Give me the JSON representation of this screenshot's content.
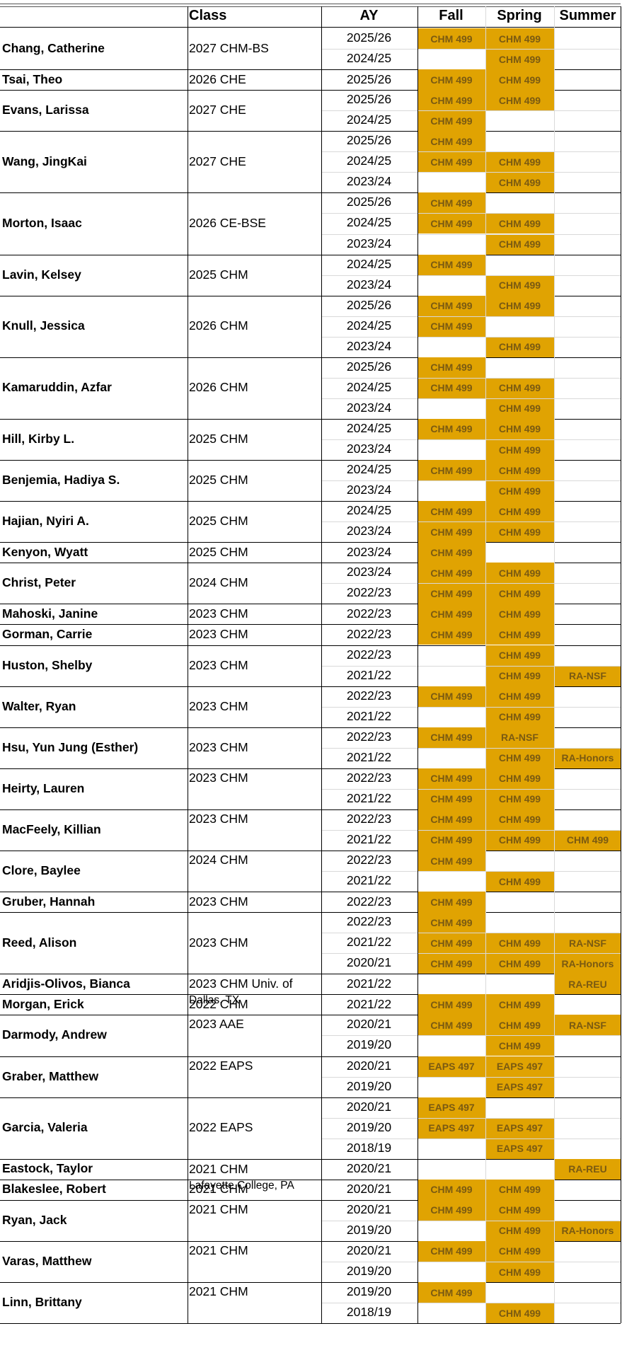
{
  "colors": {
    "fill": "#e0a302",
    "cell_text": "#7a5a12",
    "grid": "#d9d9d9",
    "border": "#000000"
  },
  "headers": {
    "class": "Class",
    "ay": "AY",
    "fall": "Fall",
    "spring": "Spring",
    "summer": "Summer"
  },
  "students": [
    {
      "name": "Chang, Catherine",
      "class": [
        "2027 CHM-BS"
      ],
      "rows": [
        {
          "ay": "2025/26",
          "fall": "CHM 499",
          "spring": "CHM 499",
          "summer": ""
        },
        {
          "ay": "2024/25",
          "fall": "",
          "spring": "CHM 499",
          "summer": ""
        }
      ]
    },
    {
      "name": "Tsai, Theo",
      "class": [
        "2026 CHE"
      ],
      "rows": [
        {
          "ay": "2025/26",
          "fall": "CHM 499",
          "spring": "CHM 499",
          "summer": ""
        }
      ]
    },
    {
      "name": "Evans, Larissa",
      "class": [
        "2027 CHE"
      ],
      "rows": [
        {
          "ay": "2025/26",
          "fall": "CHM 499",
          "spring": "CHM 499",
          "summer": ""
        },
        {
          "ay": "2024/25",
          "fall": "CHM 499",
          "spring": "",
          "summer": ""
        }
      ]
    },
    {
      "name": "Wang, JingKai",
      "class": [
        "2027 CHE"
      ],
      "rows": [
        {
          "ay": "2025/26",
          "fall": "CHM 499",
          "spring": "",
          "summer": ""
        },
        {
          "ay": "2024/25",
          "fall": "CHM 499",
          "spring": "CHM 499",
          "summer": ""
        },
        {
          "ay": "2023/24",
          "fall": "",
          "spring": "CHM 499",
          "summer": ""
        }
      ]
    },
    {
      "name": "Morton, Isaac",
      "class": [
        "2026 CE-BSE"
      ],
      "rows": [
        {
          "ay": "2025/26",
          "fall": "CHM 499",
          "spring": "",
          "summer": ""
        },
        {
          "ay": "2024/25",
          "fall": "CHM 499",
          "spring": "CHM 499",
          "summer": ""
        },
        {
          "ay": "2023/24",
          "fall": "",
          "spring": "CHM 499",
          "summer": ""
        }
      ]
    },
    {
      "name": "Lavin, Kelsey",
      "class": [
        "2025 CHM"
      ],
      "rows": [
        {
          "ay": "2024/25",
          "fall": "CHM 499",
          "spring": "",
          "summer": ""
        },
        {
          "ay": "2023/24",
          "fall": "",
          "spring": "CHM 499",
          "summer": ""
        }
      ]
    },
    {
      "name": "Knull, Jessica",
      "class": [
        "2026 CHM"
      ],
      "rows": [
        {
          "ay": "2025/26",
          "fall": "CHM 499",
          "spring": "CHM 499",
          "summer": ""
        },
        {
          "ay": "2024/25",
          "fall": "CHM 499",
          "spring": "",
          "summer": ""
        },
        {
          "ay": "2023/24",
          "fall": "",
          "spring": "CHM 499",
          "summer": ""
        }
      ]
    },
    {
      "name": "Kamaruddin, Azfar",
      "class": [
        "2026 CHM"
      ],
      "rows": [
        {
          "ay": "2025/26",
          "fall": "CHM 499",
          "spring": "",
          "summer": ""
        },
        {
          "ay": "2024/25",
          "fall": "CHM 499",
          "spring": "CHM 499",
          "summer": ""
        },
        {
          "ay": "2023/24",
          "fall": "",
          "spring": "CHM 499",
          "summer": ""
        }
      ]
    },
    {
      "name": "Hill, Kirby L.",
      "class": [
        "2025 CHM"
      ],
      "rows": [
        {
          "ay": "2024/25",
          "fall": "CHM 499",
          "spring": "CHM 499",
          "summer": ""
        },
        {
          "ay": "2023/24",
          "fall": "",
          "spring": "CHM 499",
          "summer": ""
        }
      ]
    },
    {
      "name": "Benjemia, Hadiya S.",
      "class": [
        "2025 CHM"
      ],
      "rows": [
        {
          "ay": "2024/25",
          "fall": "CHM 499",
          "spring": "CHM 499",
          "summer": ""
        },
        {
          "ay": "2023/24",
          "fall": "",
          "spring": "CHM 499",
          "summer": ""
        }
      ]
    },
    {
      "name": "Hajian, Nyiri A.",
      "class": [
        "2025 CHM"
      ],
      "rows": [
        {
          "ay": "2024/25",
          "fall": "CHM 499",
          "spring": "CHM 499",
          "summer": ""
        },
        {
          "ay": "2023/24",
          "fall": "CHM 499",
          "spring": "CHM 499",
          "summer": ""
        }
      ]
    },
    {
      "name": "Kenyon, Wyatt",
      "class": [
        "2025 CHM"
      ],
      "rows": [
        {
          "ay": "2023/24",
          "fall": "CHM 499",
          "spring": "",
          "summer": ""
        }
      ]
    },
    {
      "name": "Christ, Peter",
      "class": [
        "2024 CHM"
      ],
      "rows": [
        {
          "ay": "2023/24",
          "fall": "CHM 499",
          "spring": "CHM 499",
          "summer": ""
        },
        {
          "ay": "2022/23",
          "fall": "CHM 499",
          "spring": "CHM 499",
          "summer": ""
        }
      ]
    },
    {
      "name": "Mahoski, Janine",
      "class": [
        "2023 CHM"
      ],
      "rows": [
        {
          "ay": "2022/23",
          "fall": "CHM 499",
          "spring": "CHM 499",
          "summer": ""
        }
      ]
    },
    {
      "name": "Gorman, Carrie",
      "class": [
        "2023 CHM"
      ],
      "rows": [
        {
          "ay": "2022/23",
          "fall": "CHM 499",
          "spring": "CHM 499",
          "summer": ""
        }
      ]
    },
    {
      "name": "Huston, Shelby",
      "class": [
        "2023 CHM"
      ],
      "rows": [
        {
          "ay": "2022/23",
          "fall": "",
          "spring": "CHM 499",
          "summer": ""
        },
        {
          "ay": "2021/22",
          "fall": "",
          "spring": "CHM 499",
          "summer": "RA-NSF"
        }
      ]
    },
    {
      "name": "Walter, Ryan",
      "class": [
        "2023 CHM"
      ],
      "rows": [
        {
          "ay": "2022/23",
          "fall": "CHM 499",
          "spring": "CHM 499",
          "summer": ""
        },
        {
          "ay": "2021/22",
          "fall": "",
          "spring": "CHM 499",
          "summer": ""
        }
      ]
    },
    {
      "name": "Hsu, Yun Jung (Esther)",
      "class": [
        "2023 CHM"
      ],
      "rows": [
        {
          "ay": "2022/23",
          "fall": "CHM 499",
          "spring": "RA-NSF",
          "summer": ""
        },
        {
          "ay": "2021/22",
          "fall": "",
          "spring": "CHM 499",
          "summer": "RA-Honors"
        }
      ]
    },
    {
      "name": "Heirty, Lauren",
      "class": [
        "2023 CHM"
      ],
      "rows": [
        {
          "ay": "2022/23",
          "fall": "CHM 499",
          "spring": "CHM 499",
          "summer": ""
        },
        {
          "ay": "2021/22",
          "fall": "CHM 499",
          "spring": "CHM 499",
          "summer": ""
        }
      ]
    },
    {
      "name": "MacFeely, Killian",
      "class": [
        "2023 CHM"
      ],
      "rows": [
        {
          "ay": "2022/23",
          "fall": "CHM 499",
          "spring": "CHM 499",
          "summer": ""
        },
        {
          "ay": "2021/22",
          "fall": "CHM 499",
          "spring": "CHM 499",
          "summer": "CHM 499"
        }
      ]
    },
    {
      "name": "Clore, Baylee",
      "class": [
        "2024 CHM"
      ],
      "rows": [
        {
          "ay": "2022/23",
          "fall": "CHM 499",
          "spring": "",
          "summer": ""
        },
        {
          "ay": "2021/22",
          "fall": "",
          "spring": "CHM 499",
          "summer": ""
        }
      ]
    },
    {
      "name": "Gruber, Hannah",
      "class": [
        "2023 CHM"
      ],
      "rows": [
        {
          "ay": "2022/23",
          "fall": "CHM 499",
          "spring": "",
          "summer": ""
        }
      ]
    },
    {
      "name": "Reed, Alison",
      "class": [
        "2023 CHM"
      ],
      "rows": [
        {
          "ay": "2022/23",
          "fall": "CHM 499",
          "spring": "",
          "summer": ""
        },
        {
          "ay": "2021/22",
          "fall": "CHM 499",
          "spring": "CHM 499",
          "summer": "RA-NSF"
        },
        {
          "ay": "2020/21",
          "fall": "CHM 499",
          "spring": "CHM 499",
          "summer": "RA-Honors"
        }
      ]
    },
    {
      "name": "Aridjis-Olivos, Bianca",
      "class": [
        "2023 CHM Univ. of",
        "Dallas, TX"
      ],
      "rows": [
        {
          "ay": "2021/22",
          "fall": "",
          "spring": "",
          "summer": "RA-REU"
        }
      ]
    },
    {
      "name": "Morgan, Erick",
      "class": [
        "2022 CHM"
      ],
      "rows": [
        {
          "ay": "2021/22",
          "fall": "CHM 499",
          "spring": "CHM 499",
          "summer": ""
        }
      ]
    },
    {
      "name": "Darmody, Andrew",
      "class": [
        "2023 AAE"
      ],
      "rows": [
        {
          "ay": "2020/21",
          "fall": "CHM 499",
          "spring": "CHM 499",
          "summer": "RA-NSF"
        },
        {
          "ay": "2019/20",
          "fall": "",
          "spring": "CHM 499",
          "summer": ""
        }
      ]
    },
    {
      "name": "Graber, Matthew",
      "class": [
        "2022 EAPS"
      ],
      "rows": [
        {
          "ay": "2020/21",
          "fall": "EAPS 497",
          "spring": "EAPS 497",
          "summer": ""
        },
        {
          "ay": "2019/20",
          "fall": "",
          "spring": "EAPS 497",
          "summer": ""
        }
      ]
    },
    {
      "name": "Garcia, Valeria",
      "class": [
        "2022 EAPS"
      ],
      "rows": [
        {
          "ay": "2020/21",
          "fall": "EAPS 497",
          "spring": "",
          "summer": ""
        },
        {
          "ay": "2019/20",
          "fall": "EAPS 497",
          "spring": "EAPS 497",
          "summer": ""
        },
        {
          "ay": "2018/19",
          "fall": "",
          "spring": "EAPS 497",
          "summer": ""
        }
      ]
    },
    {
      "name": "Eastock, Taylor",
      "class": [
        "2021 CHM",
        "Lafayette College, PA"
      ],
      "rows": [
        {
          "ay": "2020/21",
          "fall": "",
          "spring": "",
          "summer": "RA-REU"
        }
      ]
    },
    {
      "name": "Blakeslee, Robert",
      "class": [
        "2021 CHM"
      ],
      "rows": [
        {
          "ay": "2020/21",
          "fall": "CHM 499",
          "spring": "CHM 499",
          "summer": ""
        }
      ]
    },
    {
      "name": "Ryan, Jack",
      "class": [
        "2021 CHM"
      ],
      "rows": [
        {
          "ay": "2020/21",
          "fall": "CHM 499",
          "spring": "CHM 499",
          "summer": ""
        },
        {
          "ay": "2019/20",
          "fall": "",
          "spring": "CHM 499",
          "summer": "RA-Honors"
        }
      ]
    },
    {
      "name": "Varas, Matthew",
      "class": [
        "2021 CHM"
      ],
      "rows": [
        {
          "ay": "2020/21",
          "fall": "CHM 499",
          "spring": "CHM 499",
          "summer": ""
        },
        {
          "ay": "2019/20",
          "fall": "",
          "spring": "CHM 499",
          "summer": ""
        }
      ]
    },
    {
      "name": "Linn, Brittany",
      "class": [
        "2021 CHM"
      ],
      "rows": [
        {
          "ay": "2019/20",
          "fall": "CHM 499",
          "spring": "",
          "summer": ""
        },
        {
          "ay": "2018/19",
          "fall": "",
          "spring": "CHM 499",
          "summer": ""
        }
      ]
    }
  ]
}
